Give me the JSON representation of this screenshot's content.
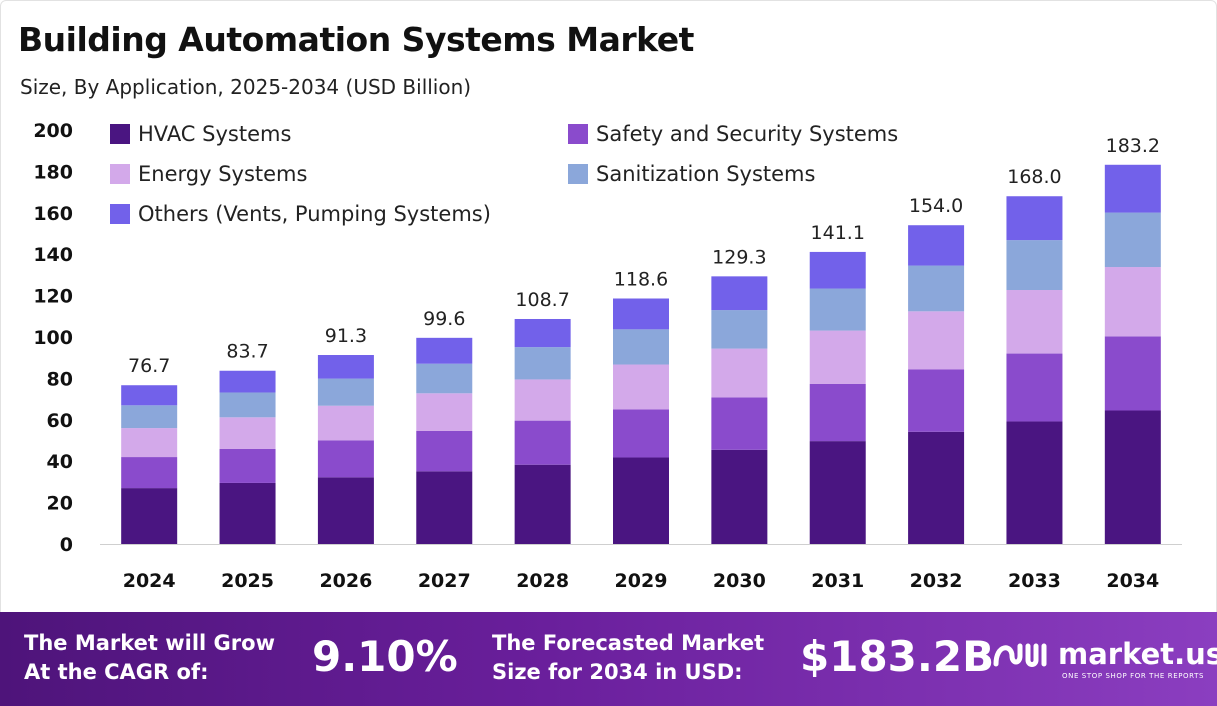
{
  "title": "Building Automation Systems Market",
  "subtitle": "Size, By Application, 2025-2034 (USD Billion)",
  "chart_data": {
    "type": "bar",
    "stacked": true,
    "categories": [
      "2024",
      "2025",
      "2026",
      "2027",
      "2028",
      "2029",
      "2030",
      "2031",
      "2032",
      "2033",
      "2034"
    ],
    "ylim": [
      0,
      200
    ],
    "yticks": [
      "0",
      "20",
      "40",
      "60",
      "80",
      "100",
      "120",
      "140",
      "160",
      "180",
      "200"
    ],
    "legend_position": "top-left",
    "grid": false,
    "totals": [
      "76.7",
      "83.7",
      "91.3",
      "99.6",
      "108.7",
      "118.6",
      "129.3",
      "141.1",
      "154.0",
      "168.0",
      "183.2"
    ],
    "series": [
      {
        "name": "HVAC Systems",
        "color": "#4a1581",
        "values": [
          27.0,
          29.5,
          32.2,
          35.1,
          38.3,
          41.8,
          45.5,
          49.7,
          54.2,
          59.2,
          64.5
        ]
      },
      {
        "name": "Safety and Security Systems",
        "color": "#8a4bcc",
        "values": [
          15.0,
          16.4,
          17.9,
          19.5,
          21.3,
          23.2,
          25.3,
          27.6,
          30.1,
          32.8,
          35.8
        ]
      },
      {
        "name": "Energy Systems",
        "color": "#d3a9ea",
        "values": [
          14.0,
          15.3,
          16.7,
          18.2,
          19.9,
          21.7,
          23.6,
          25.8,
          28.1,
          30.7,
          33.5
        ]
      },
      {
        "name": "Sanitization Systems",
        "color": "#8ba7da",
        "values": [
          11.0,
          12.0,
          13.1,
          14.3,
          15.6,
          17.0,
          18.6,
          20.3,
          22.1,
          24.1,
          26.3
        ]
      },
      {
        "name": "Others (Vents, Pumping Systems)",
        "color": "#7261ea",
        "values": [
          9.7,
          10.5,
          11.4,
          12.5,
          13.6,
          14.9,
          16.3,
          17.7,
          19.5,
          21.2,
          23.1
        ]
      }
    ]
  },
  "footer": {
    "cagr_label_1": "The Market will Grow",
    "cagr_label_2": "At the CAGR of:",
    "cagr_value": "9.10%",
    "forecast_label_1": "The Forecasted Market",
    "forecast_label_2": "Size for 2034 in USD:",
    "forecast_value": "$183.2B",
    "brand": "market.us",
    "tagline": "ONE STOP SHOP FOR THE REPORTS"
  }
}
